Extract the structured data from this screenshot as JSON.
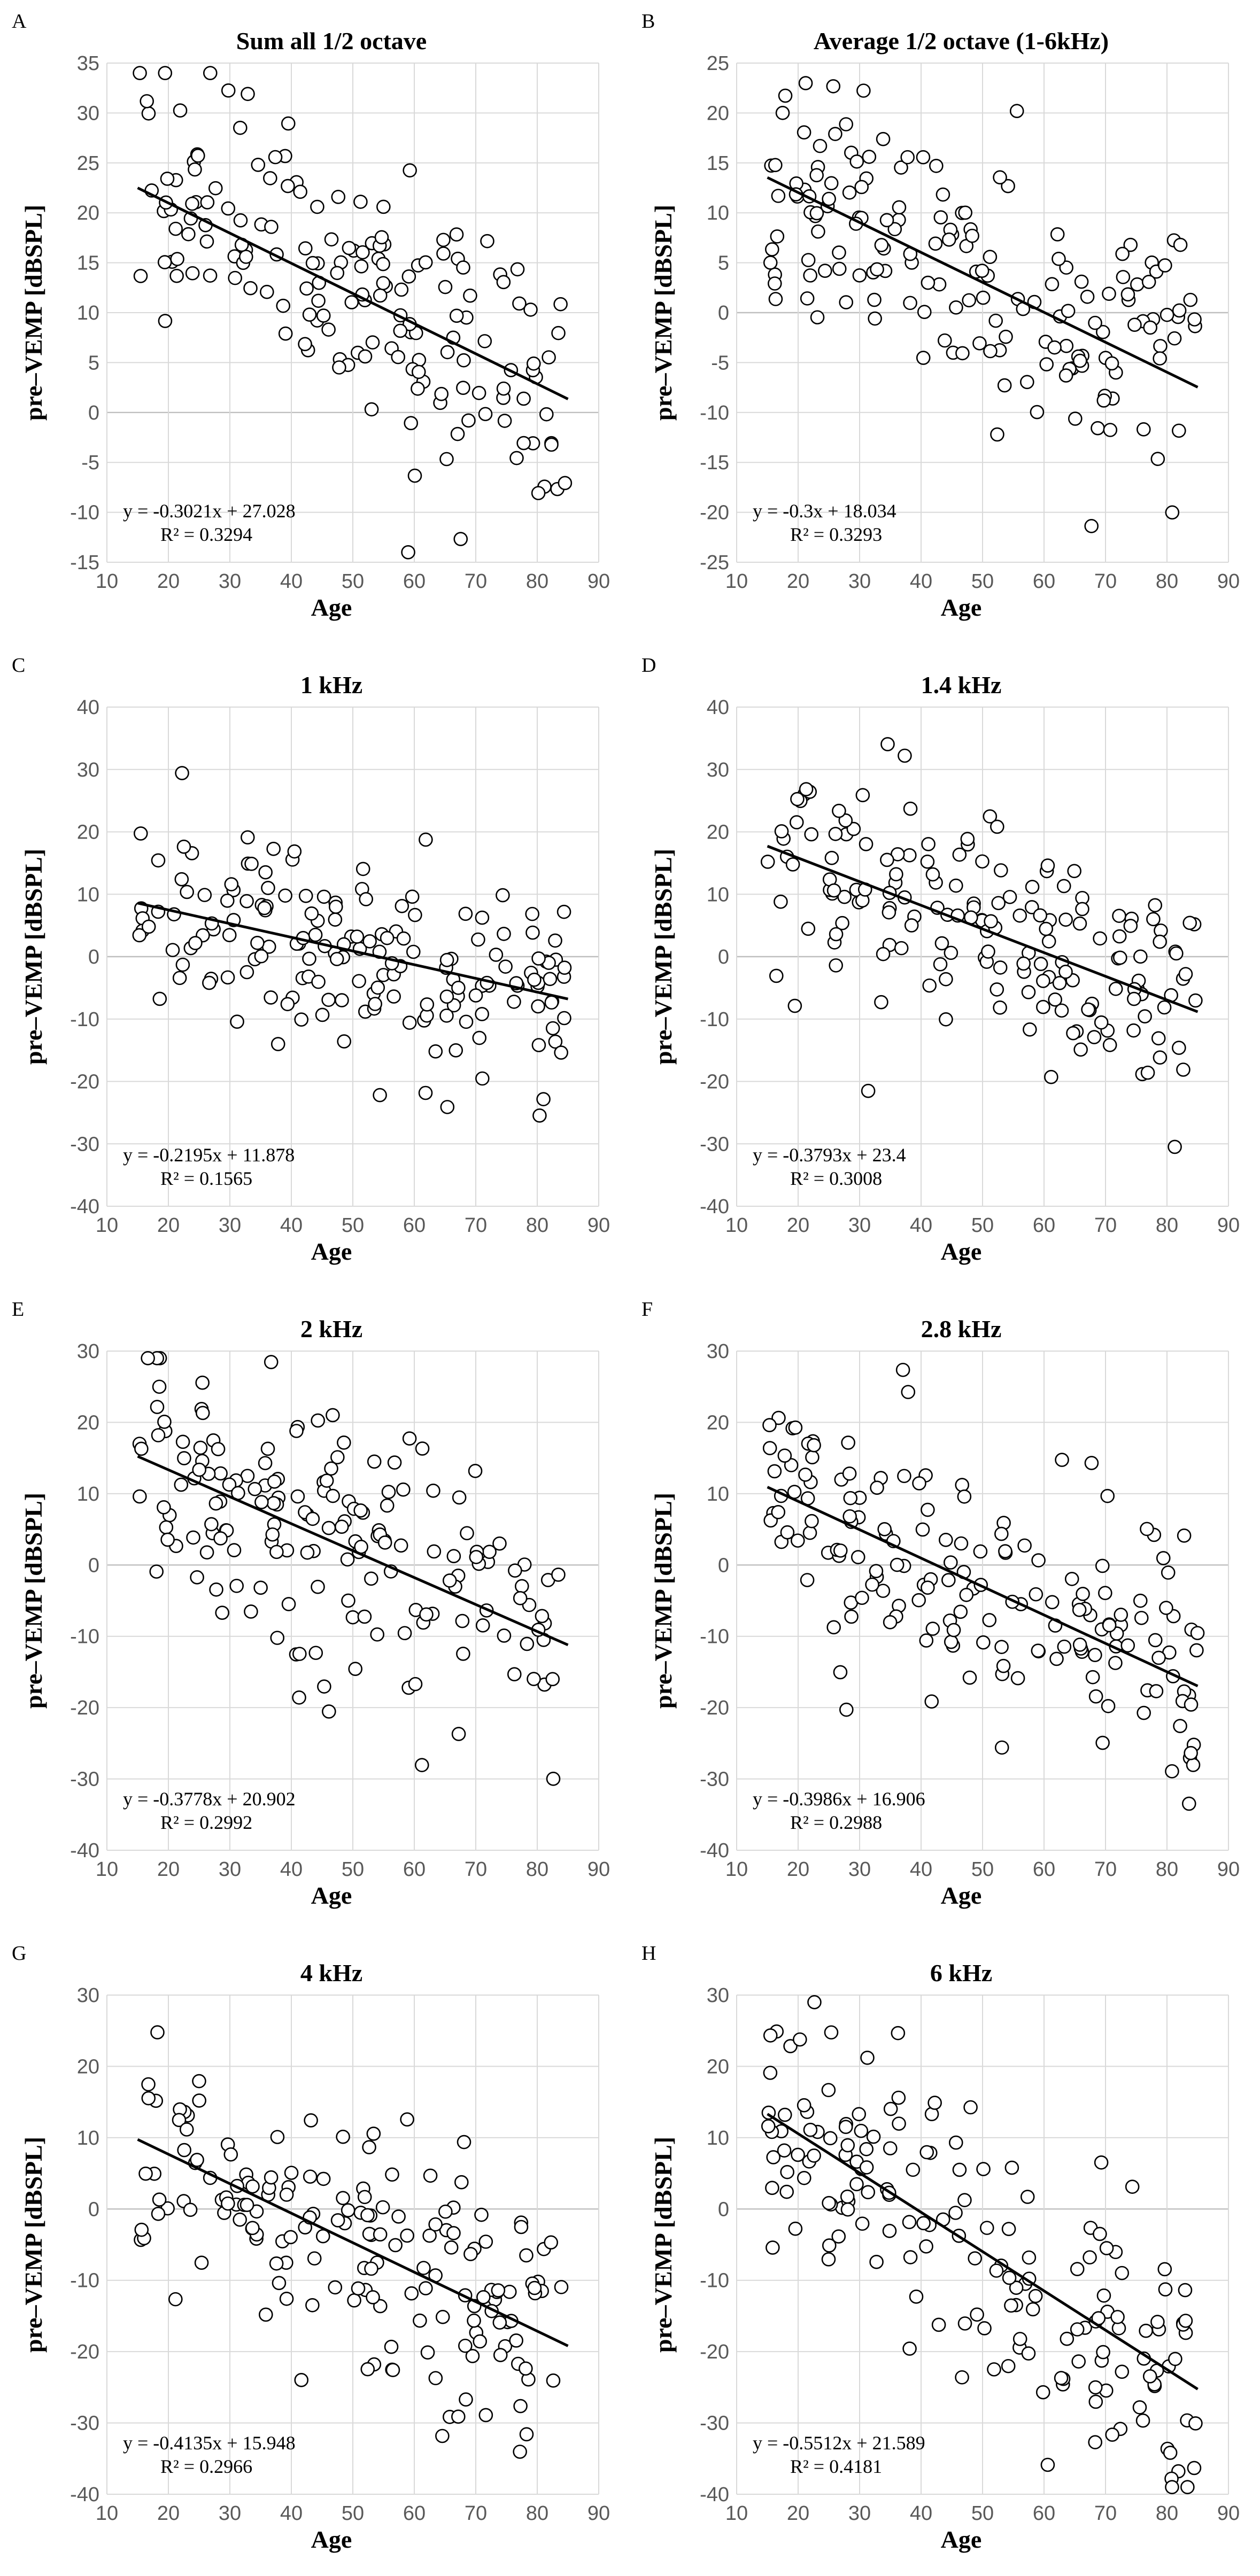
{
  "figure": {
    "xlabel": "Age",
    "ylabel": "pre–VEMP [dBSPL]"
  },
  "chart_data": [
    {
      "type": "scatter",
      "letter": "A",
      "title": "Sum all 1/2 octave",
      "xlabel": "Age",
      "ylabel": "pre–VEMP [dBSPL]",
      "xlim": [
        10,
        90
      ],
      "xticks": [
        10,
        20,
        30,
        40,
        50,
        60,
        70,
        80,
        90
      ],
      "ylim": [
        -15,
        35
      ],
      "yticks": [
        -15,
        -10,
        -5,
        0,
        5,
        10,
        15,
        20,
        25,
        30,
        35
      ],
      "trend": {
        "slope": -0.3021,
        "intercept": 27.028,
        "x_range": [
          15,
          85
        ],
        "equation": "y = -0.3021x + 27.028",
        "r2": "R² = 0.3294"
      },
      "noise": 6.5,
      "seed": 11
    },
    {
      "type": "scatter",
      "letter": "B",
      "title": "Average 1/2 octave (1-6kHz)",
      "xlabel": "Age",
      "ylabel": "pre–VEMP [dBSPL]",
      "xlim": [
        10,
        90
      ],
      "xticks": [
        10,
        20,
        30,
        40,
        50,
        60,
        70,
        80,
        90
      ],
      "ylim": [
        -25,
        25
      ],
      "yticks": [
        -25,
        -20,
        -15,
        -10,
        -5,
        0,
        5,
        10,
        15,
        20,
        25
      ],
      "trend": {
        "slope": -0.3,
        "intercept": 18.034,
        "x_range": [
          15,
          85
        ],
        "equation": "y = -0.3x + 18.034",
        "r2": "R² = 0.3293"
      },
      "noise": 6.5,
      "seed": 23
    },
    {
      "type": "scatter",
      "letter": "C",
      "title": "1 kHz",
      "xlabel": "Age",
      "ylabel": "pre–VEMP [dBSPL]",
      "xlim": [
        10,
        90
      ],
      "xticks": [
        10,
        20,
        30,
        40,
        50,
        60,
        70,
        80,
        90
      ],
      "ylim": [
        -40,
        40
      ],
      "yticks": [
        -40,
        -30,
        -20,
        -10,
        0,
        10,
        20,
        30,
        40
      ],
      "trend": {
        "slope": -0.2195,
        "intercept": 11.878,
        "x_range": [
          15,
          85
        ],
        "equation": "y = -0.2195x + 11.878",
        "r2": "R² = 0.1565"
      },
      "noise": 8,
      "seed": 37
    },
    {
      "type": "scatter",
      "letter": "D",
      "title": "1.4 kHz",
      "xlabel": "Age",
      "ylabel": "pre–VEMP [dBSPL]",
      "xlim": [
        10,
        90
      ],
      "xticks": [
        10,
        20,
        30,
        40,
        50,
        60,
        70,
        80,
        90
      ],
      "ylim": [
        -40,
        40
      ],
      "yticks": [
        -40,
        -30,
        -20,
        -10,
        0,
        10,
        20,
        30,
        40
      ],
      "trend": {
        "slope": -0.3793,
        "intercept": 23.4,
        "x_range": [
          15,
          85
        ],
        "equation": "y = -0.3793x + 23.4",
        "r2": "R² = 0.3008"
      },
      "noise": 9,
      "seed": 41
    },
    {
      "type": "scatter",
      "letter": "E",
      "title": "2 kHz",
      "xlabel": "Age",
      "ylabel": "pre–VEMP [dBSPL]",
      "xlim": [
        10,
        90
      ],
      "xticks": [
        10,
        20,
        30,
        40,
        50,
        60,
        70,
        80,
        90
      ],
      "ylim": [
        -40,
        30
      ],
      "yticks": [
        -40,
        -30,
        -20,
        -10,
        0,
        10,
        20,
        30
      ],
      "trend": {
        "slope": -0.3778,
        "intercept": 20.902,
        "x_range": [
          15,
          85
        ],
        "equation": "y = -0.3778x + 20.902",
        "r2": "R² = 0.2992"
      },
      "noise": 9,
      "seed": 53
    },
    {
      "type": "scatter",
      "letter": "F",
      "title": "2.8 kHz",
      "xlabel": "Age",
      "ylabel": "pre–VEMP [dBSPL]",
      "xlim": [
        10,
        90
      ],
      "xticks": [
        10,
        20,
        30,
        40,
        50,
        60,
        70,
        80,
        90
      ],
      "ylim": [
        -40,
        30
      ],
      "yticks": [
        -40,
        -30,
        -20,
        -10,
        0,
        10,
        20,
        30
      ],
      "trend": {
        "slope": -0.3986,
        "intercept": 16.906,
        "x_range": [
          15,
          85
        ],
        "equation": "y = -0.3986x + 16.906",
        "r2": "R² = 0.2988"
      },
      "noise": 9,
      "seed": 67
    },
    {
      "type": "scatter",
      "letter": "G",
      "title": "4 kHz",
      "xlabel": "Age",
      "ylabel": "pre–VEMP [dBSPL]",
      "xlim": [
        10,
        90
      ],
      "xticks": [
        10,
        20,
        30,
        40,
        50,
        60,
        70,
        80,
        90
      ],
      "ylim": [
        -40,
        30
      ],
      "yticks": [
        -40,
        -30,
        -20,
        -10,
        0,
        10,
        20,
        30
      ],
      "trend": {
        "slope": -0.4135,
        "intercept": 15.948,
        "x_range": [
          15,
          85
        ],
        "equation": "y = -0.4135x + 15.948",
        "r2": "R² = 0.2966"
      },
      "noise": 9.5,
      "seed": 71
    },
    {
      "type": "scatter",
      "letter": "H",
      "title": "6 kHz",
      "xlabel": "Age",
      "ylabel": "pre–VEMP [dBSPL]",
      "xlim": [
        10,
        90
      ],
      "xticks": [
        10,
        20,
        30,
        40,
        50,
        60,
        70,
        80,
        90
      ],
      "ylim": [
        -40,
        30
      ],
      "yticks": [
        -40,
        -30,
        -20,
        -10,
        0,
        10,
        20,
        30
      ],
      "trend": {
        "slope": -0.5512,
        "intercept": 21.589,
        "x_range": [
          15,
          85
        ],
        "equation": "y = -0.5512x + 21.589",
        "r2": "R² = 0.4181"
      },
      "noise": 9,
      "seed": 89
    }
  ]
}
